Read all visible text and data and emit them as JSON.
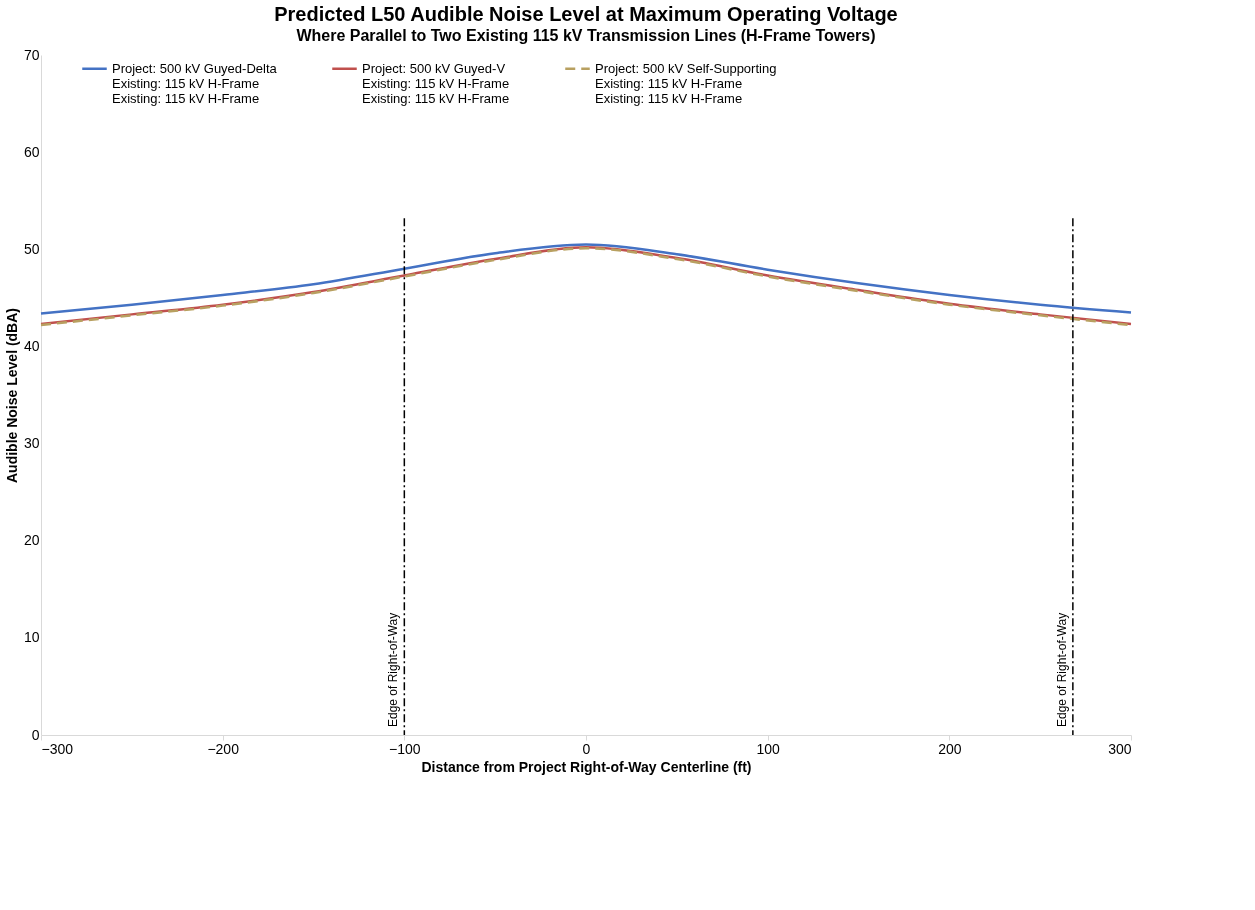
{
  "chart_data": {
    "type": "line",
    "title": "Predicted L50 Audible Noise Level at Maximum Operating Voltage",
    "subtitle": "Where Parallel to Two Existing 115 kV Transmission Lines (H-Frame Towers)",
    "xlabel": "Distance from Project Right-of-Way Centerline (ft)",
    "ylabel": "Audible Noise Level (dBA)",
    "x": [
      -300,
      -250,
      -200,
      -150,
      -100,
      -50,
      0,
      50,
      100,
      150,
      200,
      250,
      300
    ],
    "series": [
      {
        "name": "Project: 500 kV Guyed-Delta\nExisting: 115 kV H-Frame\nExisting: 115 kV H-Frame",
        "color": "#4472c4",
        "line_style": "solid",
        "values": [
          43.4,
          44.3,
          45.3,
          46.4,
          48.0,
          49.6,
          50.5,
          49.5,
          47.9,
          46.5,
          45.3,
          44.3,
          43.5
        ]
      },
      {
        "name": "Project: 500 kV Guyed-V\nExisting: 115 kV H-Frame\nExisting: 115 kV H-Frame",
        "color": "#c0504d",
        "line_style": "solid",
        "values": [
          42.3,
          43.3,
          44.3,
          45.6,
          47.3,
          49.0,
          50.2,
          49.1,
          47.3,
          45.8,
          44.4,
          43.3,
          42.3
        ]
      },
      {
        "name": "Project: 500 kV Self-Supporting\nExisting: 115 kV H-Frame\nExisting: 115 kV H-Frame",
        "color": "#b8a060",
        "line_style": "dashed",
        "values": [
          42.2,
          43.2,
          44.2,
          45.5,
          47.2,
          48.9,
          50.1,
          49.0,
          47.2,
          45.7,
          44.3,
          43.2,
          42.2
        ]
      }
    ],
    "xlim": [
      -300,
      300
    ],
    "xticks": [
      -300,
      -200,
      -100,
      0,
      100,
      200,
      300
    ],
    "ylim": [
      0,
      70
    ],
    "yticks": [
      0,
      10,
      20,
      30,
      40,
      50,
      60,
      70
    ],
    "ref_lines": [
      {
        "axis": "x",
        "value": -100,
        "label": "Edge of Right-of-Way",
        "color": "#000000",
        "line_style": "dashdot"
      },
      {
        "axis": "x",
        "value": 268,
        "label": "Edge of Right-of-Way",
        "color": "#000000",
        "line_style": "dashdot"
      }
    ],
    "grid": false,
    "legend": "top",
    "marker": "none"
  }
}
